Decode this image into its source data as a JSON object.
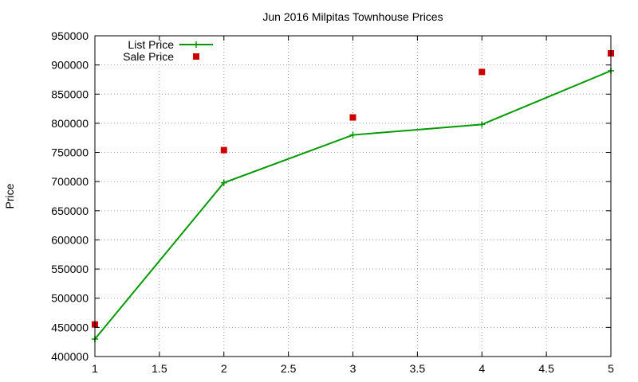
{
  "chart_data": {
    "type": "line",
    "title": "Jun 2016 Milpitas Townhouse Prices",
    "xlabel": "",
    "ylabel": "Price",
    "xlim": [
      1,
      5
    ],
    "ylim": [
      400000,
      950000
    ],
    "x_ticks": [
      "1",
      "1.5",
      "2",
      "2.5",
      "3",
      "3.5",
      "4",
      "4.5",
      "5"
    ],
    "y_ticks": [
      "400000",
      "450000",
      "500000",
      "550000",
      "600000",
      "650000",
      "700000",
      "750000",
      "800000",
      "850000",
      "900000",
      "950000"
    ],
    "grid": true,
    "legend_position": "top-left",
    "x": [
      1,
      2,
      3,
      4,
      5
    ],
    "series": [
      {
        "name": "List Price",
        "style": "lines+points",
        "color": "#009900",
        "values": [
          430000,
          698000,
          780000,
          798000,
          890000
        ]
      },
      {
        "name": "Sale Price",
        "style": "points",
        "color": "#cc0000",
        "values": [
          455000,
          754000,
          810000,
          888000,
          920000
        ]
      }
    ]
  }
}
